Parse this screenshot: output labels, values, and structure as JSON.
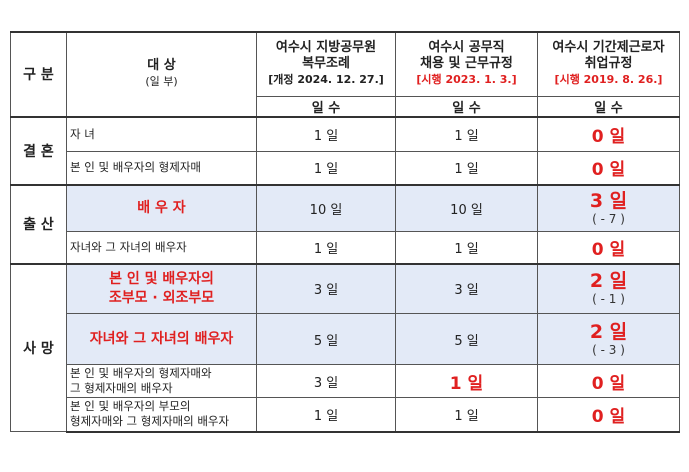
{
  "header": {
    "category": "구 분",
    "subject": "대 상",
    "subject_sub": "(일 부)",
    "col1": {
      "line1": "여수시 지방공무원",
      "line2": "복무조례",
      "line3": "[개정 2024. 12. 27.]"
    },
    "col2": {
      "line1": "여수시 공무직",
      "line2": "채용 및 근무규정",
      "line3": "[시행 2023. 1. 3.]"
    },
    "col3": {
      "line1": "여수시 기간제근로자",
      "line2": "취업규정",
      "line3": "[시행 2019. 8. 26.]"
    },
    "unit": "일 수"
  },
  "sections": [
    {
      "label": "결 혼",
      "rows": [
        {
          "subject": "자 녀",
          "v1": "1 일",
          "v2": "1 일",
          "v3": "0 일"
        },
        {
          "subject": "본 인 및 배우자의 형제자매",
          "v1": "1 일",
          "v2": "1 일",
          "v3": "0 일"
        }
      ]
    },
    {
      "label": "출 산",
      "rows": [
        {
          "subject": "배 우 자",
          "v1": "10 일",
          "v2": "10 일",
          "v3": "3 일",
          "v3_note": "( - 7 )"
        },
        {
          "subject": "자녀와 그 자녀의 배우자",
          "v1": "1 일",
          "v2": "1 일",
          "v3": "0 일"
        }
      ]
    },
    {
      "label": "사 망",
      "rows": [
        {
          "subject_line1": "본 인 및 배우자의",
          "subject_line2": "조부모 · 외조부모",
          "v1": "3 일",
          "v2": "3 일",
          "v3": "2 일",
          "v3_note": "( - 1 )"
        },
        {
          "subject": "자녀와 그 자녀의 배우자",
          "v1": "5 일",
          "v2": "5 일",
          "v3": "2 일",
          "v3_note": "( - 3 )"
        },
        {
          "subject_line1": "본 인 및 배우자의 형제자매와",
          "subject_line2": "그 형제자매의 배우자",
          "v1": "3 일",
          "v2": "1 일",
          "v3": "0 일"
        },
        {
          "subject_line1": "본 인 및 배우자의 부모의",
          "subject_line2": "형제자매와 그 형제자매의 배우자",
          "v1": "1 일",
          "v2": "1 일",
          "v3": "0 일"
        }
      ]
    }
  ]
}
